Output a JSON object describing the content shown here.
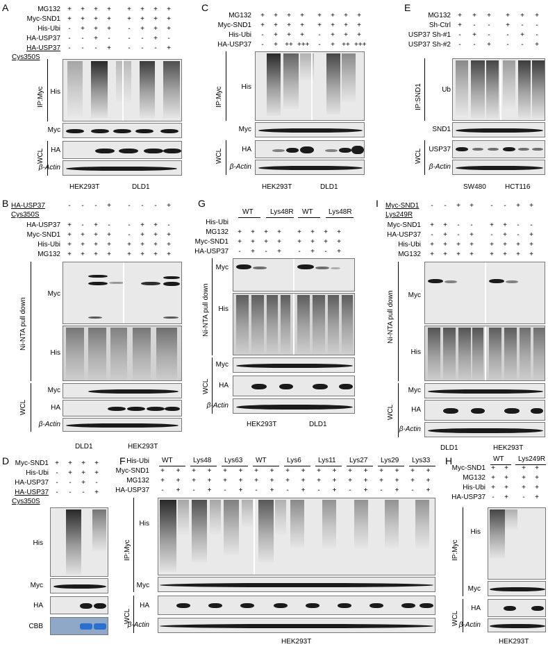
{
  "panels": {
    "A": {
      "letter": "A",
      "rows": [
        "MG132",
        "Myc-SND1",
        "His-Ubi",
        "HA-USP37",
        "HA-USP37"
      ],
      "row5b": "Cys350S",
      "signs": [
        [
          "+",
          "+",
          "+",
          "+",
          "+",
          "+",
          "+",
          "+"
        ],
        [
          "+",
          "+",
          "+",
          "+",
          "+",
          "+",
          "+",
          "+"
        ],
        [
          "-",
          "+",
          "+",
          "+",
          "-",
          "+",
          "+",
          "+"
        ],
        [
          "-",
          "-",
          "+",
          "-",
          "-",
          "-",
          "+",
          "-"
        ],
        [
          "-",
          "-",
          "-",
          "+",
          "-",
          "-",
          "-",
          "+"
        ]
      ],
      "group_ip": "IP:Myc",
      "group_wcl": "WCL",
      "blots": [
        "His",
        "Myc",
        "HA",
        "β-Actin"
      ],
      "cells": [
        "HEK293T",
        "DLD1"
      ]
    },
    "B": {
      "letter": "B",
      "rows": [
        "HA-USP37",
        "HA-USP37",
        "Myc-SND1",
        "His-Ubi",
        "MG132"
      ],
      "row1b": "Cys350S",
      "signs": [
        [
          "-",
          "-",
          "-",
          "+",
          "-",
          "-",
          "-",
          "+"
        ],
        [
          "+",
          "-",
          "+",
          "-",
          "-",
          "+",
          "+",
          "-"
        ],
        [
          "+",
          "+",
          "+",
          "+",
          "-",
          "+",
          "+",
          "+"
        ],
        [
          "+",
          "+",
          "+",
          "+",
          "+",
          "+",
          "+",
          "+"
        ],
        [
          "+",
          "+",
          "+",
          "+",
          "+",
          "+",
          "+",
          "+"
        ]
      ],
      "group_pd": "Ni-NTA pull down",
      "group_wcl": "WCL",
      "blots": [
        "Myc",
        "His",
        "Myc",
        "HA",
        "β-Actin"
      ],
      "cells": [
        "DLD1",
        "HEK293T"
      ]
    },
    "C": {
      "letter": "C",
      "rows": [
        "MG132",
        "Myc-SND1",
        "His-Ubi",
        "HA-USP37"
      ],
      "signs": [
        [
          "+",
          "+",
          "+",
          "+",
          "+",
          "+",
          "+",
          "+"
        ],
        [
          "+",
          "+",
          "+",
          "+",
          "+",
          "+",
          "+",
          "+"
        ],
        [
          "-",
          "+",
          "+",
          "+",
          "-",
          "+",
          "+",
          "+"
        ],
        [
          "-",
          "+",
          "++",
          "+++",
          "-",
          "+",
          "++",
          "+++"
        ]
      ],
      "group_ip": "IP:Myc",
      "group_wcl": "WCL",
      "blots": [
        "His",
        "Myc",
        "HA",
        "β-Actin"
      ],
      "cells": [
        "HEK293T",
        "DLD1"
      ]
    },
    "E": {
      "letter": "E",
      "rows": [
        "MG132",
        "Sh-Ctrl",
        "USP37 Sh-#1",
        "USP37 Sh-#2"
      ],
      "signs": [
        [
          "+",
          "+",
          "+",
          "+",
          "+",
          "+"
        ],
        [
          "+",
          "-",
          "-",
          "+",
          "-",
          "-"
        ],
        [
          "-",
          "+",
          "-",
          "-",
          "+",
          "-"
        ],
        [
          "-",
          "-",
          "+",
          "-",
          "-",
          "+"
        ]
      ],
      "group_ip": "IP:SND1",
      "group_wcl": "WCL",
      "blots": [
        "Ub",
        "SND1",
        "USP37",
        "β-Actin"
      ],
      "cells": [
        "SW480",
        "HCT116"
      ]
    },
    "G": {
      "letter": "G",
      "headers": [
        "WT",
        "Lys48R",
        "WT",
        "Lys48R"
      ],
      "rows": [
        "His-Ubi",
        "MG132",
        "Myc-SND1",
        "HA-USP37"
      ],
      "signs": [
        [
          "+",
          "+",
          "+",
          "+",
          "+",
          "+",
          "+",
          "+"
        ],
        [
          "+",
          "+",
          "+",
          "+",
          "+",
          "+",
          "+",
          "+"
        ],
        [
          "-",
          "+",
          "-",
          "+",
          "-",
          "+",
          "-",
          "+"
        ]
      ],
      "group_pd": "Ni-NTA pull down",
      "group_wcl": "WCL",
      "blots": [
        "Myc",
        "His",
        "Myc",
        "HA",
        "β-Actin"
      ],
      "cells": [
        "HEK293T",
        "DLD1"
      ]
    },
    "I": {
      "letter": "I",
      "rows": [
        "Myc-SND1",
        "Myc-SND1",
        "HA-USP37",
        "His-Ubi",
        "MG132"
      ],
      "row1b": "Lys249R",
      "signs": [
        [
          "-",
          "-",
          "+",
          "+",
          "-",
          "-",
          "+",
          "+"
        ],
        [
          "+",
          "+",
          "-",
          "-",
          "+",
          "+",
          "-",
          "-"
        ],
        [
          "-",
          "+",
          "-",
          "+",
          "-",
          "+",
          "-",
          "+"
        ],
        [
          "+",
          "+",
          "+",
          "+",
          "+",
          "+",
          "+",
          "+"
        ],
        [
          "+",
          "+",
          "+",
          "+",
          "+",
          "+",
          "+",
          "+"
        ]
      ],
      "group_pd": "Ni-NTA pull down",
      "group_wcl": "WCL",
      "blots": [
        "Myc",
        "His",
        "Myc",
        "HA",
        "β-Actin"
      ],
      "cells": [
        "DLD1",
        "HEK293T"
      ]
    },
    "D": {
      "letter": "D",
      "rows": [
        "Myc-SND1",
        "His-Ubi",
        "HA-USP37",
        "HA-USP37"
      ],
      "row4b": "Cys350S",
      "signs": [
        [
          "+",
          "+",
          "+",
          "+"
        ],
        [
          "-",
          "+",
          "+",
          "+"
        ],
        [
          "-",
          "-",
          "+",
          "-"
        ],
        [
          "-",
          "-",
          "-",
          "+"
        ]
      ],
      "blots": [
        "His",
        "Myc",
        "HA",
        "CBB"
      ]
    },
    "F": {
      "letter": "F",
      "headers": [
        "WT",
        "Lys48",
        "Lys63",
        "WT",
        "Lys6",
        "Lys11",
        "Lys27",
        "Lys29",
        "Lys33"
      ],
      "rows": [
        "His-Ubi",
        "Myc-SND1",
        "MG132",
        "HA-USP37"
      ],
      "signs": [
        [
          "+",
          "+",
          "+",
          "+",
          "+",
          "+",
          "+",
          "+",
          "+",
          "+",
          "+",
          "+",
          "+",
          "+",
          "+",
          "+",
          "+",
          "+"
        ],
        [
          "+",
          "+",
          "+",
          "+",
          "+",
          "+",
          "+",
          "+",
          "+",
          "+",
          "+",
          "+",
          "+",
          "+",
          "+",
          "+",
          "+",
          "+"
        ],
        [
          "-",
          "+",
          "-",
          "+",
          "-",
          "+",
          "-",
          "+",
          "-",
          "+",
          "-",
          "+",
          "-",
          "+",
          "-",
          "+",
          "-",
          "+"
        ]
      ],
      "group_ip": "IP:Myc",
      "group_wcl": "WCL",
      "blots": [
        "His",
        "Myc",
        "HA",
        "β-Actin"
      ],
      "cells": [
        "HEK293T"
      ]
    },
    "H": {
      "letter": "H",
      "headers": [
        "WT",
        "Lys249R"
      ],
      "rows": [
        "Myc-SND1",
        "MG132",
        "His-Ubi",
        "HA-USP37"
      ],
      "signs": [
        [
          "+",
          "+",
          "+",
          "+"
        ],
        [
          "+",
          "+",
          "+",
          "+"
        ],
        [
          "+",
          "+",
          "+",
          "+"
        ],
        [
          "-",
          "+",
          "-",
          "+"
        ]
      ],
      "group_ip": "IP:Myc",
      "group_wcl": "WCL",
      "blots": [
        "His",
        "Myc",
        "HA",
        "β-Actin"
      ],
      "cells": [
        "HEK293T"
      ]
    }
  }
}
